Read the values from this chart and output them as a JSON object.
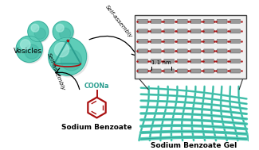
{
  "background_color": "#ffffff",
  "teal_sphere": "#5ecdb8",
  "teal_highlight": "#b0ede2",
  "teal_dark": "#2a9d8f",
  "teal_gel": "#4ecbb5",
  "teal_gel_dark": "#2a9d8f",
  "red_color": "#aa1111",
  "vesicles_label": "Vesicles",
  "sodium_benzoate_label": "Sodium Benzoate",
  "sodium_benzoate_gel_label": "Sodium Benzoate Gel",
  "self_assembly_upper": "Self-assembly",
  "self_assembly_lower": "Self-assembly",
  "dimension_label": "1.1 nm",
  "coonas_label": "COONa"
}
